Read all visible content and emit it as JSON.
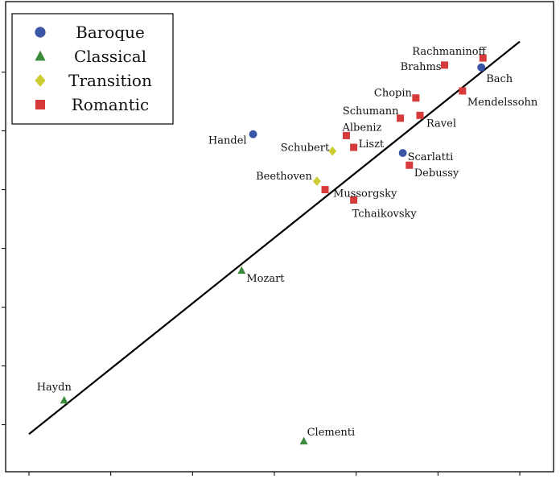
{
  "chart_data": {
    "type": "scatter",
    "title": "",
    "xlabel": "",
    "ylabel": "",
    "xlim": [
      4.5,
      5.1
    ],
    "ylim": [
      0.0,
      1.0
    ],
    "legend_position": "top-left",
    "grid": false,
    "legend": [
      {
        "name": "Baroque",
        "marker": "circle",
        "color": "#3b55a6"
      },
      {
        "name": "Classical",
        "marker": "triangle",
        "color": "#3c8a3c"
      },
      {
        "name": "Transition",
        "marker": "diamond",
        "color": "#cccc33"
      },
      {
        "name": "Romantic",
        "marker": "square",
        "color": "#d63a3a"
      }
    ],
    "points": [
      {
        "label": "Rachmaninoff",
        "group": "Romantic",
        "x": 5.055,
        "y": 0.88
      },
      {
        "label": "Bach",
        "group": "Baroque",
        "x": 5.053,
        "y": 0.86
      },
      {
        "label": "Brahms",
        "group": "Romantic",
        "x": 5.008,
        "y": 0.865
      },
      {
        "label": "Mendelssohn",
        "group": "Romantic",
        "x": 5.03,
        "y": 0.81
      },
      {
        "label": "Chopin",
        "group": "Romantic",
        "x": 4.973,
        "y": 0.795
      },
      {
        "label": "Schumann",
        "group": "Romantic",
        "x": 4.954,
        "y": 0.752
      },
      {
        "label": "Ravel",
        "group": "Romantic",
        "x": 4.978,
        "y": 0.758
      },
      {
        "label": "Albeniz",
        "group": "Romantic",
        "x": 4.888,
        "y": 0.715
      },
      {
        "label": "Liszt",
        "group": "Romantic",
        "x": 4.897,
        "y": 0.69
      },
      {
        "label": "Handel",
        "group": "Baroque",
        "x": 4.774,
        "y": 0.718
      },
      {
        "label": "Schubert",
        "group": "Transition",
        "x": 4.871,
        "y": 0.682
      },
      {
        "label": "Scarlatti",
        "group": "Baroque",
        "x": 4.957,
        "y": 0.678
      },
      {
        "label": "Debussy",
        "group": "Romantic",
        "x": 4.965,
        "y": 0.652
      },
      {
        "label": "Beethoven",
        "group": "Transition",
        "x": 4.852,
        "y": 0.618
      },
      {
        "label": "Mussorgsky",
        "group": "Romantic",
        "x": 4.862,
        "y": 0.6
      },
      {
        "label": "Tchaikovsky",
        "group": "Romantic",
        "x": 4.897,
        "y": 0.578
      },
      {
        "label": "Mozart",
        "group": "Classical",
        "x": 4.76,
        "y": 0.428
      },
      {
        "label": "Haydn",
        "group": "Classical",
        "x": 4.543,
        "y": 0.152
      },
      {
        "label": "Clementi",
        "group": "Classical",
        "x": 4.836,
        "y": 0.065
      }
    ],
    "fit_line": {
      "x": [
        4.5,
        5.1
      ],
      "y": [
        0.08,
        0.915
      ]
    }
  }
}
